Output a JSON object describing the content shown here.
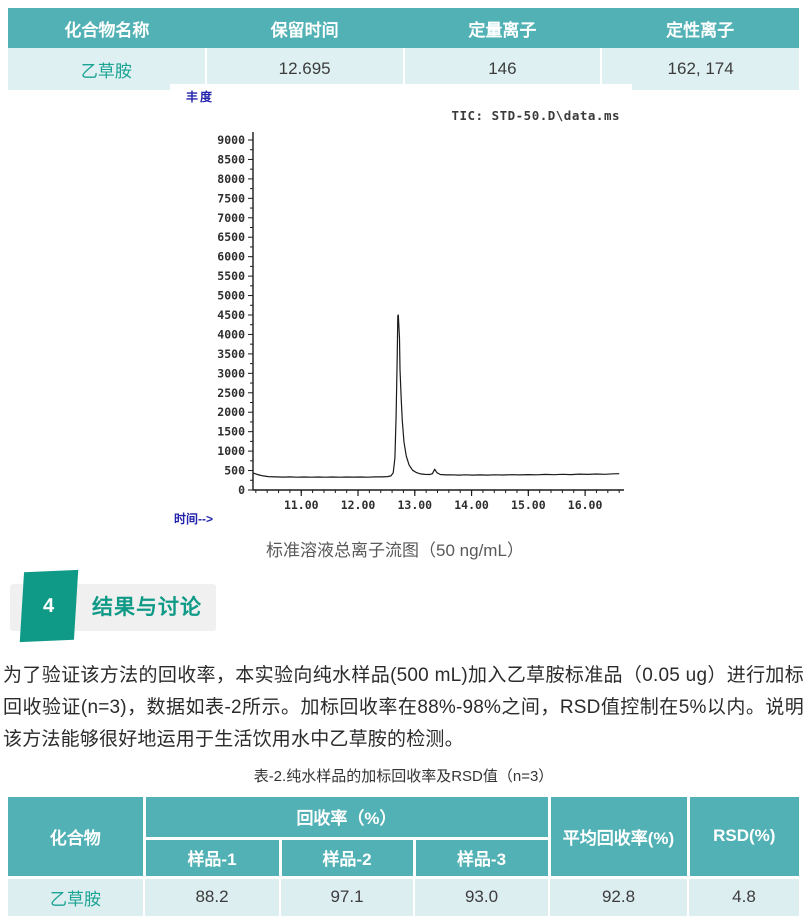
{
  "colors": {
    "table_header_teal": "#52b1b4",
    "table_row_cyan": "#def0f1",
    "compound_text_teal": "#1ba394",
    "section_teal": "#0f9a87",
    "section_strip_gray": "#f0f0f0",
    "axis_label_blue": "#2222ac",
    "trace_black": "#1a1a1a"
  },
  "table1": {
    "headers": [
      "化合物名称",
      "保留时间",
      "定量离子",
      "定性离子"
    ],
    "row": [
      "乙草胺",
      "12.695",
      "146",
      "162, 174"
    ]
  },
  "chart_data": {
    "type": "line",
    "title": "TIC: STD-50.D\\data.ms",
    "xlabel": "时间-->",
    "ylabel": "丰度",
    "xlim": [
      10.15,
      16.65
    ],
    "ylim": [
      0,
      9200
    ],
    "y_ticks": [
      0,
      500,
      1000,
      1500,
      2000,
      2500,
      3000,
      3500,
      4000,
      4500,
      5000,
      5500,
      6000,
      6500,
      7000,
      7500,
      8000,
      8500,
      9000
    ],
    "x_ticks": [
      11,
      12,
      13,
      14,
      15,
      16
    ],
    "x_tick_labels": [
      "11.00",
      "12.00",
      "13.00",
      "14.00",
      "15.00",
      "16.00"
    ],
    "grid": false,
    "legend": "none",
    "series": [
      {
        "name": "TIC STD-50.D\\data.ms",
        "points": [
          [
            10.15,
            435
          ],
          [
            10.2,
            415
          ],
          [
            10.26,
            385
          ],
          [
            10.33,
            362
          ],
          [
            10.42,
            345
          ],
          [
            10.55,
            338
          ],
          [
            10.68,
            332
          ],
          [
            10.8,
            336
          ],
          [
            10.92,
            330
          ],
          [
            11.05,
            334
          ],
          [
            11.18,
            329
          ],
          [
            11.3,
            334
          ],
          [
            11.42,
            330
          ],
          [
            11.55,
            335
          ],
          [
            11.68,
            330
          ],
          [
            11.8,
            334
          ],
          [
            11.92,
            331
          ],
          [
            12.05,
            334
          ],
          [
            12.18,
            330
          ],
          [
            12.3,
            336
          ],
          [
            12.42,
            338
          ],
          [
            12.52,
            344
          ],
          [
            12.58,
            362
          ],
          [
            12.62,
            440
          ],
          [
            12.65,
            820
          ],
          [
            12.67,
            1900
          ],
          [
            12.69,
            3400
          ],
          [
            12.7,
            4480
          ],
          [
            12.71,
            4500
          ],
          [
            12.73,
            3900
          ],
          [
            12.74,
            3100
          ],
          [
            12.76,
            2350
          ],
          [
            12.78,
            1780
          ],
          [
            12.81,
            1230
          ],
          [
            12.85,
            870
          ],
          [
            12.9,
            640
          ],
          [
            12.96,
            510
          ],
          [
            13.03,
            448
          ],
          [
            13.1,
            415
          ],
          [
            13.18,
            400
          ],
          [
            13.26,
            398
          ],
          [
            13.31,
            420
          ],
          [
            13.35,
            535
          ],
          [
            13.39,
            445
          ],
          [
            13.45,
            398
          ],
          [
            13.55,
            388
          ],
          [
            13.65,
            392
          ],
          [
            13.78,
            384
          ],
          [
            13.9,
            390
          ],
          [
            14.02,
            383
          ],
          [
            14.15,
            388
          ],
          [
            14.28,
            382
          ],
          [
            14.4,
            390
          ],
          [
            14.55,
            385
          ],
          [
            14.7,
            394
          ],
          [
            14.85,
            388
          ],
          [
            15.0,
            396
          ],
          [
            15.15,
            390
          ],
          [
            15.3,
            400
          ],
          [
            15.45,
            393
          ],
          [
            15.6,
            404
          ],
          [
            15.75,
            397
          ],
          [
            15.9,
            408
          ],
          [
            16.05,
            401
          ],
          [
            16.2,
            412
          ],
          [
            16.35,
            405
          ],
          [
            16.5,
            416
          ],
          [
            16.6,
            420
          ]
        ]
      }
    ]
  },
  "caption1": "标准溶液总离子流图（50 ng/mL）",
  "section": {
    "number": "4",
    "title": "结果与讨论"
  },
  "paragraph": "为了验证该方法的回收率，本实验向纯水样品(500 mL)加入乙草胺标准品（0.05 ug）进行加标回收验证(n=3)，数据如表-2所示。加标回收率在88%-98%之间，RSD值控制在5%以内。说明该方法能够很好地运用于生活饮用水中乙草胺的检测。",
  "caption2": "表-2.纯水样品的加标回收率及RSD值（n=3）",
  "table2": {
    "col_compound": "化合物",
    "col_recovery_group": "回收率（%）",
    "col_samples": [
      "样品-1",
      "样品-2",
      "样品-3"
    ],
    "col_avg": "平均回收率(%)",
    "col_rsd": "RSD(%)",
    "row": {
      "compound": "乙草胺",
      "values": [
        "88.2",
        "97.1",
        "93.0",
        "92.8",
        "4.8"
      ]
    }
  }
}
